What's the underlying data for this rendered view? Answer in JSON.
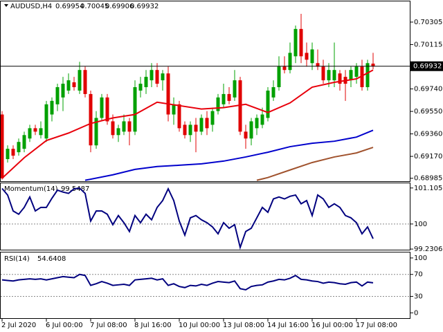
{
  "chart_data": [
    {
      "type": "candlestick",
      "title": "AUDUSD,H4",
      "categories": [
        "2 Jul 2020",
        null,
        null,
        null,
        null,
        null,
        null,
        null,
        "6 Jul 00:00",
        null,
        null,
        null,
        null,
        null,
        null,
        null,
        "7 Jul 08:00",
        null,
        null,
        null,
        null,
        null,
        null,
        null,
        "8 Jul 16:00",
        null,
        null,
        null,
        null,
        null,
        null,
        null,
        "10 Jul 00:00",
        null,
        null,
        null,
        null,
        null,
        null,
        null,
        "13 Jul 08:00",
        null,
        null,
        null,
        null,
        null,
        null,
        null,
        "14 Jul 16:00",
        null,
        null,
        null,
        null,
        null,
        null,
        null,
        "16 Jul 00:00",
        null,
        null,
        null,
        null,
        null,
        null,
        null,
        "17 Jul 08:00",
        null,
        null,
        null
      ],
      "open": [
        0.69524,
        0.69147,
        0.69234,
        0.69205,
        0.69234,
        0.69321,
        0.69408,
        0.6935,
        0.69321,
        0.69524,
        0.6961,
        0.69668,
        0.69726,
        0.69796,
        0.69726,
        0.699,
        0.69697,
        0.69263,
        0.69495,
        0.69668,
        0.69466,
        0.6935,
        0.69379,
        0.69466,
        0.69379,
        0.69726,
        0.69755,
        0.69813,
        0.699,
        0.69813,
        0.69871,
        0.69524,
        0.6961,
        0.69437,
        0.6935,
        0.69437,
        0.69379,
        0.69495,
        0.69437,
        0.69553,
        0.6961,
        0.69697,
        0.69668,
        0.69813,
        0.69379,
        0.69321,
        0.69408,
        0.69437,
        0.69495,
        0.69668,
        0.69755,
        0.69929,
        0.699,
        0.70016,
        0.70247,
        0.70045,
        0.69958,
        0.69958,
        0.69929,
        0.69813,
        0.69813,
        0.69871,
        0.69842,
        0.69813,
        0.69842,
        0.69929,
        0.69755,
        0.69954
      ],
      "high": [
        0.69553,
        0.69263,
        0.69263,
        0.69321,
        0.69379,
        0.69437,
        0.69437,
        0.69466,
        0.69639,
        0.69668,
        0.69784,
        0.69842,
        0.69871,
        0.69842,
        0.69969,
        0.69929,
        0.69726,
        0.69553,
        0.69697,
        0.69697,
        0.69524,
        0.69437,
        0.69524,
        0.69495,
        0.69813,
        0.69842,
        0.699,
        0.69958,
        0.69958,
        0.699,
        0.69929,
        0.69668,
        0.69639,
        0.69466,
        0.69466,
        0.69495,
        0.69524,
        0.69553,
        0.69582,
        0.69697,
        0.69784,
        0.69755,
        0.699,
        0.69842,
        0.69437,
        0.69495,
        0.69524,
        0.69582,
        0.69755,
        0.69813,
        0.70016,
        0.70016,
        0.70132,
        0.70276,
        0.70375,
        0.70132,
        0.70132,
        0.70074,
        0.69987,
        0.69958,
        0.70132,
        0.699,
        0.699,
        0.69929,
        0.69958,
        0.69987,
        0.69987,
        0.70045
      ],
      "low": [
        0.68974,
        0.69118,
        0.69147,
        0.69176,
        0.69205,
        0.69292,
        0.6935,
        0.69321,
        0.69292,
        0.69466,
        0.69553,
        0.69553,
        0.69697,
        0.69726,
        0.69697,
        0.69668,
        0.69205,
        0.69234,
        0.69466,
        0.69437,
        0.69321,
        0.69292,
        0.6935,
        0.69263,
        0.6935,
        0.69668,
        0.69697,
        0.69755,
        0.69755,
        0.69726,
        0.69466,
        0.69437,
        0.69379,
        0.69321,
        0.69292,
        0.69205,
        0.6935,
        0.6935,
        0.69379,
        0.69524,
        0.69582,
        0.6961,
        0.69639,
        0.6935,
        0.69234,
        0.69263,
        0.6935,
        0.69408,
        0.69466,
        0.69639,
        0.69726,
        0.69871,
        0.69871,
        0.69958,
        0.69958,
        0.69929,
        0.699,
        0.699,
        0.69784,
        0.69755,
        0.69755,
        0.69726,
        0.69639,
        0.69755,
        0.69784,
        0.69726,
        0.69726,
        0.69906
      ],
      "close": [
        0.68985,
        0.69234,
        0.69176,
        0.69292,
        0.6935,
        0.69408,
        0.69379,
        0.69408,
        0.6961,
        0.69639,
        0.69755,
        0.69784,
        0.69813,
        0.69755,
        0.699,
        0.69697,
        0.69263,
        0.69495,
        0.69668,
        0.69466,
        0.6935,
        0.69408,
        0.69466,
        0.69379,
        0.69755,
        0.69784,
        0.69842,
        0.699,
        0.69784,
        0.69871,
        0.69524,
        0.6961,
        0.69408,
        0.6935,
        0.69437,
        0.69379,
        0.69495,
        0.69408,
        0.69553,
        0.69668,
        0.69697,
        0.69639,
        0.69813,
        0.69379,
        0.69321,
        0.69466,
        0.69495,
        0.69524,
        0.69726,
        0.69755,
        0.69929,
        0.699,
        0.70045,
        0.70247,
        0.70016,
        0.69987,
        0.70074,
        0.69929,
        0.69813,
        0.699,
        0.699,
        0.69784,
        0.69784,
        0.699,
        0.69929,
        0.69755,
        0.69958,
        0.69932
      ],
      "up_color": "#00a000",
      "down_color": "#e00000",
      "series": [
        {
          "color": "#e8000b",
          "x": [
            0,
            4,
            8,
            12,
            16,
            20,
            24,
            28,
            32,
            36,
            40,
            44,
            48,
            52,
            56,
            60,
            64,
            67
          ],
          "values": [
            0.68985,
            0.69159,
            0.69304,
            0.69367,
            0.69448,
            0.69495,
            0.69524,
            0.69628,
            0.69599,
            0.6957,
            0.69582,
            0.6961,
            0.69541,
            0.69622,
            0.69755,
            0.69796,
            0.69825,
            0.699
          ]
        },
        {
          "color": "#0000cc",
          "x": [
            15,
            20,
            24,
            28,
            32,
            36,
            40,
            44,
            48,
            52,
            56,
            60,
            64,
            67
          ],
          "values": [
            0.68968,
            0.69014,
            0.6906,
            0.69084,
            0.69095,
            0.69107,
            0.6913,
            0.69165,
            0.69205,
            0.69252,
            0.69281,
            0.69298,
            0.69333,
            0.69391
          ]
        },
        {
          "color": "#a0522d",
          "x": [
            46,
            48,
            52,
            56,
            60,
            64,
            67
          ],
          "values": [
            0.68968,
            0.68991,
            0.69055,
            0.69118,
            0.69165,
            0.69199,
            0.69246
          ]
        }
      ],
      "ylim": [
        0.6896,
        0.7048
      ],
      "yticks": [
        0.70305,
        0.70115,
        {
          "value": 0.6974,
          "label": "0.69740"
        },
        {
          "value": 0.6955,
          "label": "0.69550"
        },
        {
          "value": 0.6936,
          "label": "0.69360"
        },
        {
          "value": 0.6917,
          "label": "0.69170"
        },
        0.68985
      ]
    },
    {
      "type": "line",
      "title": "Momentum(14)",
      "color": "#00007f",
      "values": [
        101.09,
        100.89,
        100.4,
        100.3,
        100.51,
        100.83,
        100.4,
        100.51,
        100.51,
        100.79,
        101.04,
        100.98,
        100.94,
        101.08,
        101.1,
        100.94,
        100.09,
        100.4,
        100.4,
        100.3,
        99.98,
        100.26,
        100.04,
        99.77,
        100.26,
        100.04,
        100.3,
        100.13,
        100.51,
        100.72,
        101.08,
        100.72,
        100.09,
        99.66,
        100.19,
        100.26,
        100.13,
        100.04,
        99.91,
        99.7,
        100.04,
        99.87,
        99.98,
        99.28,
        99.77,
        99.87,
        100.19,
        100.51,
        100.36,
        100.77,
        100.83,
        100.77,
        100.85,
        100.89,
        100.62,
        100.72,
        100.26,
        100.89,
        100.77,
        100.51,
        100.62,
        100.51,
        100.26,
        100.19,
        100.04,
        99.7,
        99.91,
        99.5487
      ],
      "ylim": [
        99.19,
        101.25
      ],
      "yticks": [
        101.1058,
        100,
        99.2306
      ],
      "levels": [
        100
      ]
    },
    {
      "type": "line",
      "title": "RSI(14)",
      "color": "#00007f",
      "values": [
        60,
        59,
        58,
        60,
        61,
        62,
        61,
        62,
        60,
        62,
        64,
        66,
        65,
        64,
        70,
        68,
        50,
        53,
        57,
        54,
        50,
        51,
        52,
        50,
        60,
        61,
        62,
        63,
        60,
        62,
        50,
        53,
        48,
        46,
        50,
        49,
        52,
        50,
        54,
        57,
        56,
        55,
        58,
        44,
        42,
        48,
        50,
        51,
        56,
        58,
        61,
        60,
        63,
        68,
        61,
        60,
        58,
        57,
        54,
        56,
        55,
        53,
        52,
        55,
        56,
        49,
        56,
        54.6408
      ],
      "ylim": [
        -11,
        110
      ],
      "yticks": [
        100,
        70,
        30,
        0
      ],
      "levels": [
        70,
        30
      ]
    }
  ]
}
